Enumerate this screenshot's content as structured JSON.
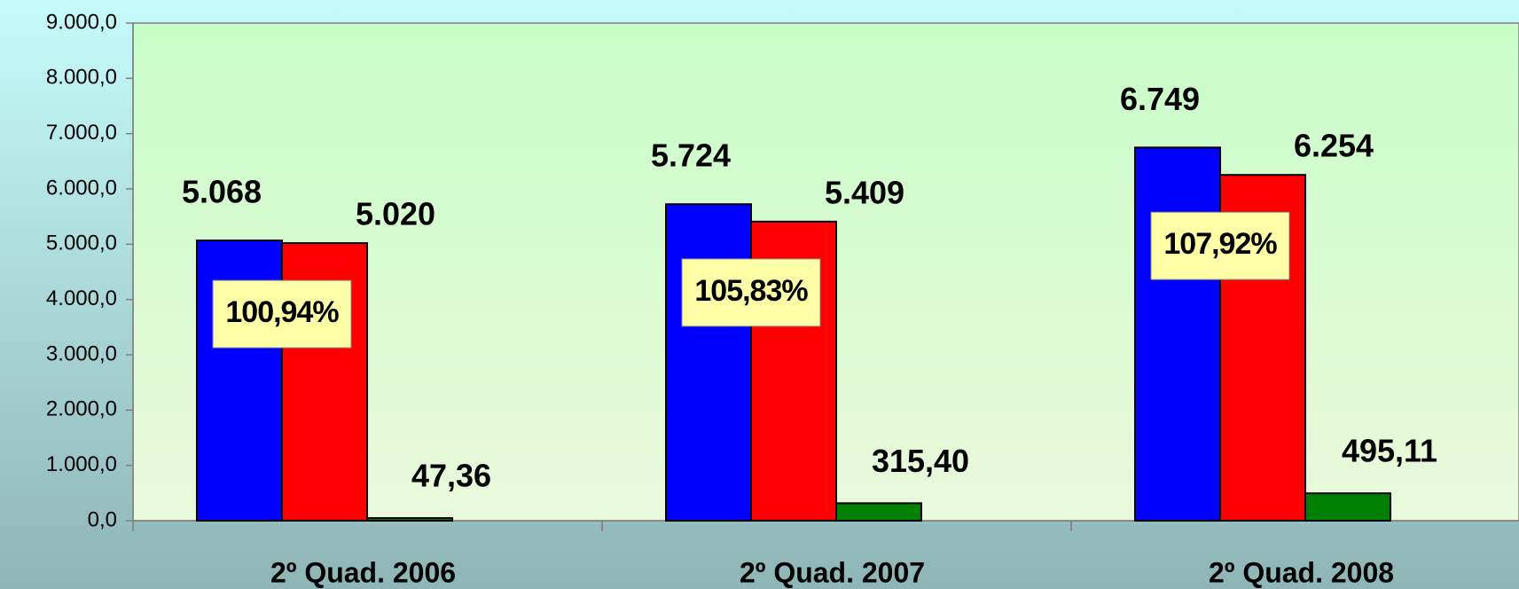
{
  "chart_data": {
    "type": "bar",
    "categories": [
      "2º Quad. 2006",
      "2º Quad. 2007",
      "2º Quad. 2008"
    ],
    "series": [
      {
        "color": "#0000ff",
        "values": [
          5068,
          5724,
          6749
        ],
        "value_labels": [
          "5.068",
          "5.724",
          "6.749"
        ]
      },
      {
        "color": "#ff0000",
        "values": [
          5020,
          5409,
          6254
        ],
        "value_labels": [
          "5.020",
          "5.409",
          "6.254"
        ]
      },
      {
        "color": "#008000",
        "values": [
          47.36,
          315.4,
          495.11
        ],
        "value_labels": [
          "47,36",
          "315,40",
          "495,11"
        ]
      }
    ],
    "annotations": [
      "100,94%",
      "105,83%",
      "107,92%"
    ],
    "ylim": [
      0,
      9000
    ],
    "yticks": [
      {
        "value": 0,
        "label": "0,0"
      },
      {
        "value": 1000,
        "label": "1.000,0"
      },
      {
        "value": 2000,
        "label": "2.000,0"
      },
      {
        "value": 3000,
        "label": "3.000,0"
      },
      {
        "value": 4000,
        "label": "4.000,0"
      },
      {
        "value": 5000,
        "label": "5.000,0"
      },
      {
        "value": 6000,
        "label": "6.000,0"
      },
      {
        "value": 7000,
        "label": "7.000,0"
      },
      {
        "value": 8000,
        "label": "8.000,0"
      },
      {
        "value": 9000,
        "label": "9.000,0"
      }
    ]
  }
}
